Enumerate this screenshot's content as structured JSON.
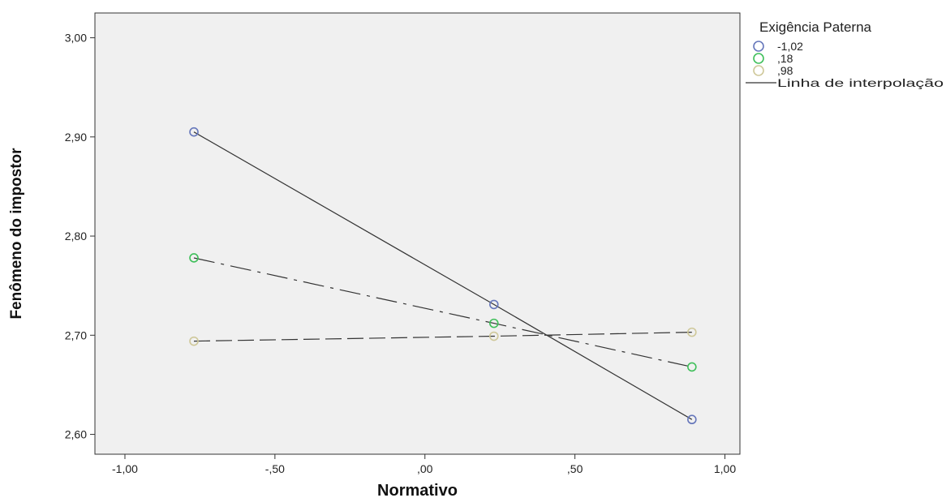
{
  "chart_data": {
    "type": "line",
    "title": "",
    "xlabel": "Normativo",
    "ylabel": "Fenômeno do impostor",
    "xlim": [
      -1.1,
      1.05
    ],
    "ylim": [
      2.58,
      3.025
    ],
    "x_ticks": [
      -1.0,
      -0.5,
      0.0,
      0.5,
      1.0
    ],
    "x_tick_labels": [
      "-1,00",
      "-,50",
      ",00",
      ",50",
      "1,00"
    ],
    "y_ticks": [
      2.6,
      2.7,
      2.8,
      2.9,
      3.0
    ],
    "y_tick_labels": [
      "2,60",
      "2,70",
      "2,80",
      "2,90",
      "3,00"
    ],
    "grid": false,
    "legend_position": "right",
    "legend_title": "Exigência Paterna",
    "interpolation_label": "Linha de interpolação",
    "series": [
      {
        "name": "-1,02",
        "color": "#6677bb",
        "line_style": "solid",
        "x": [
          -0.77,
          0.23,
          0.89
        ],
        "y": [
          2.905,
          2.731,
          2.615
        ]
      },
      {
        "name": ",18",
        "color": "#3fbf5a",
        "line_style": "dash-dot",
        "x": [
          -0.77,
          0.23,
          0.89
        ],
        "y": [
          2.778,
          2.712,
          2.668
        ]
      },
      {
        "name": ",98",
        "color": "#cfc89a",
        "line_style": "dashed",
        "x": [
          -0.77,
          0.23,
          0.89
        ],
        "y": [
          2.694,
          2.699,
          2.703
        ]
      }
    ],
    "line_color": "#333333",
    "plot_background": "#f0f0f0"
  }
}
